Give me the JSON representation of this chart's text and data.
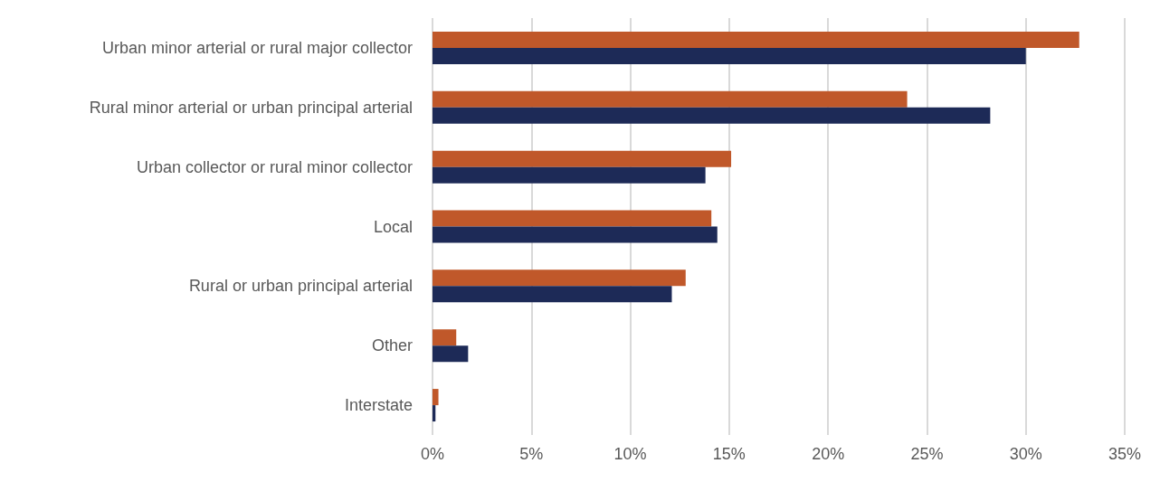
{
  "chart_data": {
    "type": "bar",
    "orientation": "horizontal",
    "categories": [
      "Urban minor arterial or rural major collector",
      "Rural minor arterial or urban principal arterial",
      "Urban collector or rural minor collector",
      "Local",
      "Rural or urban principal arterial",
      "Other",
      "Interstate"
    ],
    "series": [
      {
        "color": "#c0582a",
        "values": [
          32.7,
          24.0,
          15.1,
          14.1,
          12.8,
          1.2,
          0.3
        ]
      },
      {
        "color": "#1d2a57",
        "values": [
          30.0,
          28.2,
          13.8,
          14.4,
          12.1,
          1.8,
          0.15
        ]
      }
    ],
    "xlim": [
      0,
      35
    ],
    "xticks": [
      {
        "value": 0,
        "label": "0%"
      },
      {
        "value": 5,
        "label": "5%"
      },
      {
        "value": 10,
        "label": "10%"
      },
      {
        "value": 15,
        "label": "15%"
      },
      {
        "value": 20,
        "label": "20%"
      },
      {
        "value": 25,
        "label": "25%"
      },
      {
        "value": 30,
        "label": "30%"
      },
      {
        "value": 35,
        "label": "35%"
      }
    ],
    "grid": "x"
  }
}
